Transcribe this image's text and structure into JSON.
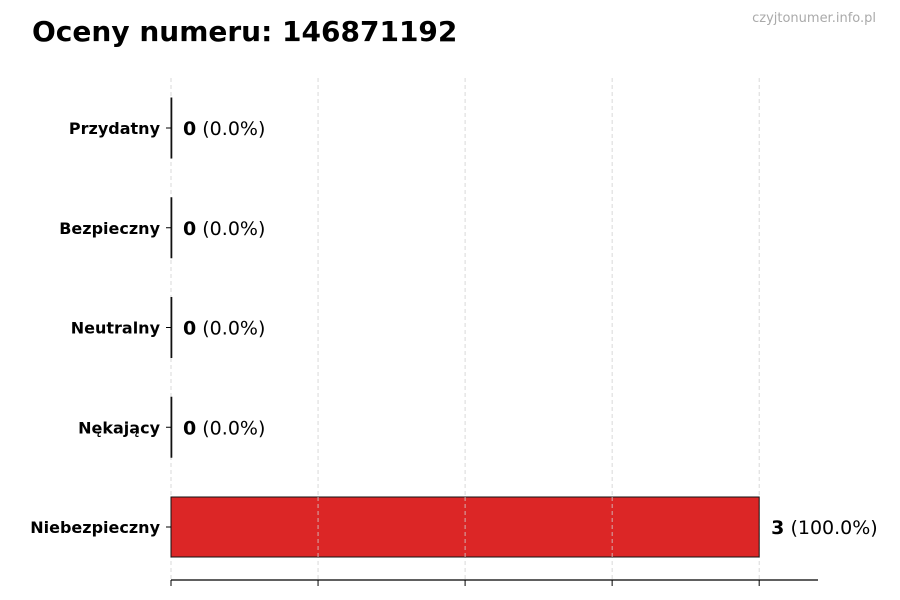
{
  "chart_data": {
    "type": "bar",
    "orientation": "horizontal",
    "title": "Oceny numeru: 146871192",
    "watermark": "czyjtonumer.info.pl",
    "categories": [
      "Przydatny",
      "Bezpieczny",
      "Neutralny",
      "Nękający",
      "Niebezpieczny"
    ],
    "values": [
      0,
      0,
      0,
      0,
      3
    ],
    "percent_labels": [
      "(0.0%)",
      "(0.0%)",
      "(0.0%)",
      "(0.0%)",
      "(100.0%)"
    ],
    "colors": [
      "#2ca02c",
      "#1f77b4",
      "#7f7f7f",
      "#ff7f0e",
      "#dc2626"
    ],
    "xlim": [
      0,
      3.3
    ],
    "xticks": [
      0,
      0.75,
      1.5,
      2.25,
      3
    ],
    "xtick_labels_visible": false,
    "grid": "x, dashed",
    "xlabel": "",
    "ylabel": ""
  }
}
